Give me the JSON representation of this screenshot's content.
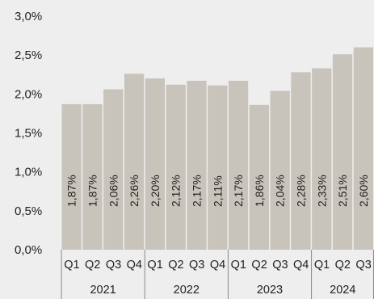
{
  "chart_data": {
    "type": "bar",
    "categories": [
      "Q1",
      "Q2",
      "Q3",
      "Q4",
      "Q1",
      "Q2",
      "Q3",
      "Q4",
      "Q1",
      "Q2",
      "Q3",
      "Q4",
      "Q1",
      "Q2",
      "Q3"
    ],
    "groups": [
      {
        "label": "2021",
        "count": 4
      },
      {
        "label": "2022",
        "count": 4
      },
      {
        "label": "2023",
        "count": 4
      },
      {
        "label": "2024",
        "count": 3
      }
    ],
    "values": [
      1.87,
      1.87,
      2.06,
      2.26,
      2.2,
      2.12,
      2.17,
      2.11,
      2.17,
      1.86,
      2.04,
      2.28,
      2.33,
      2.51,
      2.6
    ],
    "value_labels": [
      "1,87%",
      "1,87%",
      "2,06%",
      "2,26%",
      "2,20%",
      "2,12%",
      "2,17%",
      "2,11%",
      "2,17%",
      "1,86%",
      "2,04%",
      "2,28%",
      "2,33%",
      "2,51%",
      "2,60%"
    ],
    "yticks": [
      0,
      0.5,
      1.0,
      1.5,
      2.0,
      2.5,
      3.0
    ],
    "ytick_labels": [
      "0,0%",
      "0,5%",
      "1,0%",
      "1,5%",
      "2,0%",
      "2,5%",
      "3,0%"
    ],
    "ylim": [
      0,
      3.0
    ],
    "title": "",
    "xlabel": "",
    "ylabel": "",
    "grid": false,
    "colors": {
      "bar": "#c8c4bc",
      "background": "#eeeeee",
      "axis": "#888888"
    }
  }
}
